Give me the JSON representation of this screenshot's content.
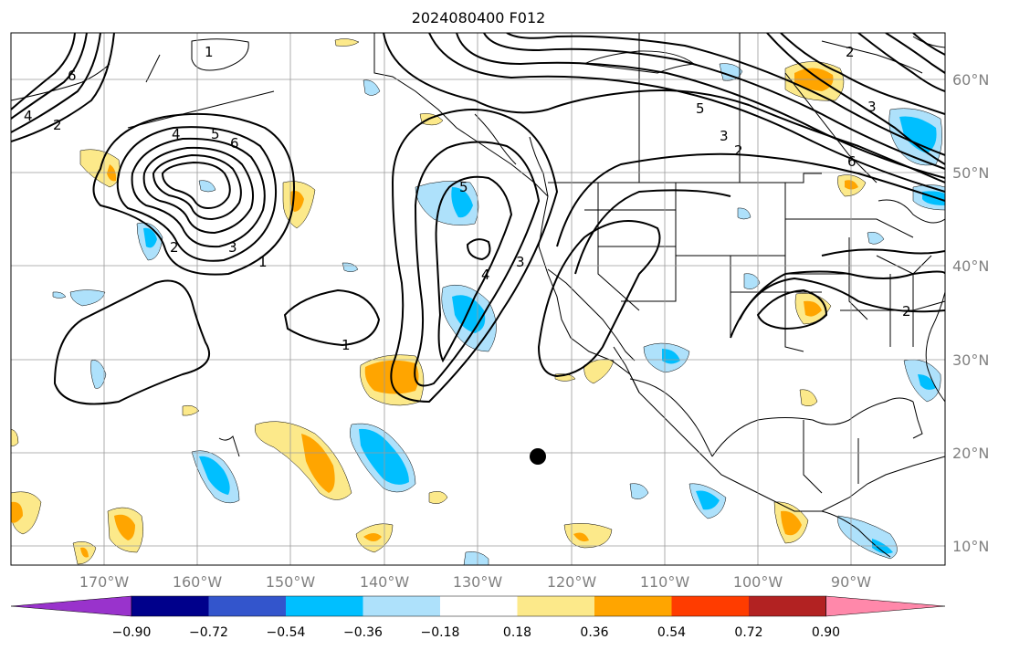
{
  "title": "2024080400 F012",
  "map": {
    "projection": "PlateCarree",
    "lon_range": [
      -180,
      -80
    ],
    "lat_range": [
      8,
      65
    ],
    "grid": true
  },
  "axes": {
    "lon_ticks": [
      "170°W",
      "160°W",
      "150°W",
      "140°W",
      "130°W",
      "120°W",
      "110°W",
      "100°W",
      "90°W"
    ],
    "lat_ticks": [
      "60°N",
      "50°N",
      "40°N",
      "30°N",
      "20°N",
      "10°N"
    ]
  },
  "colorbar": {
    "ticks": [
      "−0.90",
      "−0.72",
      "−0.54",
      "−0.36",
      "−0.18",
      "0.18",
      "0.36",
      "0.54",
      "0.72",
      "0.90"
    ],
    "colors": {
      "under": "#9933cc",
      "bins": [
        "#00008b",
        "#3355cc",
        "#00bfff",
        "#aee1fb",
        "#ffffff",
        "#fce98a",
        "#ffa500",
        "#ff3c00",
        "#b22222",
        "#ff88aa"
      ],
      "over": "#ff88aa"
    }
  },
  "contour_labels": [
    "1",
    "1",
    "1",
    "2",
    "2",
    "2",
    "2",
    "2",
    "3",
    "3",
    "3",
    "3",
    "4",
    "4",
    "4",
    "5",
    "5",
    "5",
    "6",
    "6",
    "6"
  ],
  "marker": {
    "name": "storm-center-dot"
  }
}
